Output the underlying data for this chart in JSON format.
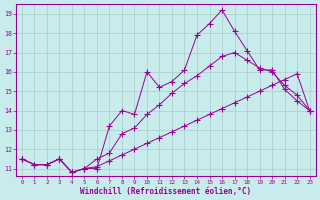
{
  "background_color": "#c8ecec",
  "line_color": "#990099",
  "grid_color": "#aacccc",
  "xlabel": "Windchill (Refroidissement éolien,°C)",
  "xlim": [
    -0.5,
    23.5
  ],
  "ylim": [
    10.6,
    19.5
  ],
  "xticks": [
    0,
    1,
    2,
    3,
    4,
    5,
    6,
    7,
    8,
    9,
    10,
    11,
    12,
    13,
    14,
    15,
    16,
    17,
    18,
    19,
    20,
    21,
    22,
    23
  ],
  "yticks": [
    11,
    12,
    13,
    14,
    15,
    16,
    17,
    18,
    19
  ],
  "line1_x": [
    0,
    1,
    2,
    3,
    4,
    5,
    6,
    7,
    8,
    9,
    10,
    11,
    12,
    13,
    14,
    15,
    16,
    17,
    18,
    19,
    20,
    21,
    22,
    23
  ],
  "line1_y": [
    11.5,
    11.2,
    11.2,
    11.5,
    10.8,
    11.0,
    11.0,
    13.2,
    14.0,
    13.8,
    16.0,
    15.2,
    15.5,
    16.1,
    17.9,
    18.5,
    19.2,
    18.1,
    17.1,
    16.1,
    16.1,
    15.1,
    14.5,
    14.0
  ],
  "line2_x": [
    0,
    1,
    2,
    3,
    4,
    5,
    6,
    7,
    8,
    9,
    10,
    11,
    12,
    13,
    14,
    15,
    16,
    17,
    18,
    19,
    20,
    21,
    22,
    23
  ],
  "line2_y": [
    11.5,
    11.2,
    11.2,
    11.5,
    10.8,
    11.0,
    11.5,
    11.8,
    12.8,
    13.1,
    13.8,
    14.3,
    14.9,
    15.4,
    15.8,
    16.3,
    16.8,
    17.0,
    16.6,
    16.2,
    16.0,
    15.3,
    14.8,
    14.0
  ],
  "line3_x": [
    0,
    1,
    2,
    3,
    4,
    5,
    6,
    7,
    8,
    9,
    10,
    11,
    12,
    13,
    14,
    15,
    16,
    17,
    18,
    19,
    20,
    21,
    22,
    23
  ],
  "line3_y": [
    11.5,
    11.2,
    11.2,
    11.5,
    10.8,
    11.0,
    11.1,
    11.4,
    11.7,
    12.0,
    12.3,
    12.6,
    12.9,
    13.2,
    13.5,
    13.8,
    14.1,
    14.4,
    14.7,
    15.0,
    15.3,
    15.6,
    15.9,
    14.0
  ]
}
